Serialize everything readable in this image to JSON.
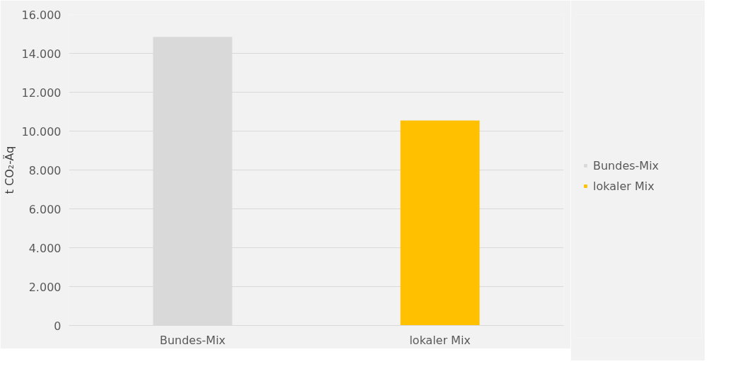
{
  "chart_data": {
    "type": "bar",
    "ylabel": "t CO₂-Äq",
    "categories": [
      "Bundes-Mix",
      "lokaler Mix"
    ],
    "series": [
      {
        "name": "Bundes-Mix",
        "color": "#d9d9d9",
        "values": [
          14850,
          null
        ]
      },
      {
        "name": "lokaler Mix",
        "color": "#ffc000",
        "values": [
          null,
          10550
        ]
      }
    ],
    "ylim": [
      0,
      16000
    ],
    "yticks": [
      {
        "value": 0,
        "label": "0"
      },
      {
        "value": 2000,
        "label": "2.000"
      },
      {
        "value": 4000,
        "label": "4.000"
      },
      {
        "value": 6000,
        "label": "6.000"
      },
      {
        "value": 8000,
        "label": "8.000"
      },
      {
        "value": 10000,
        "label": "10.000"
      },
      {
        "value": 12000,
        "label": "12.000"
      },
      {
        "value": 14000,
        "label": "14.000"
      },
      {
        "value": 16000,
        "label": "16.000"
      }
    ],
    "grid": "y",
    "legend": "right"
  }
}
